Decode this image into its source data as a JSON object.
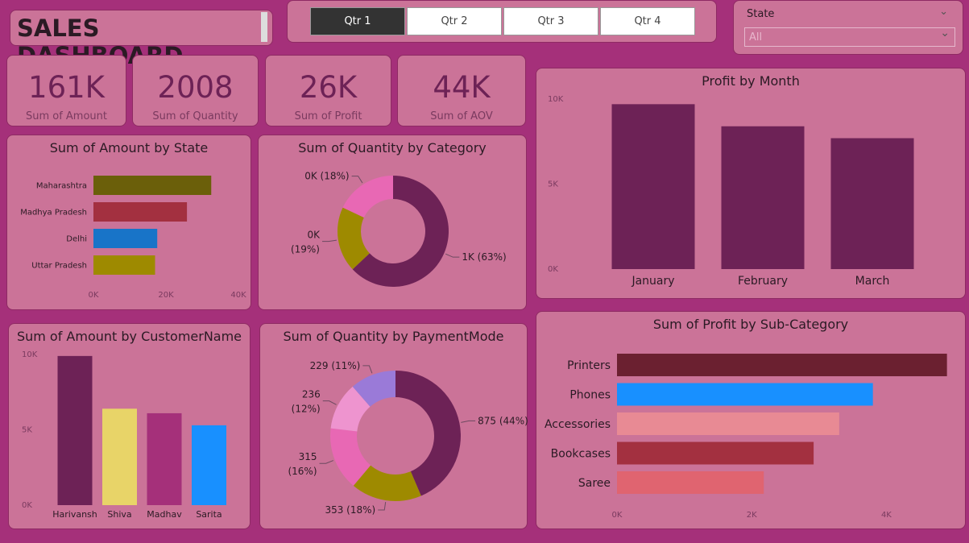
{
  "header": {
    "title": "SALES DASHBOARD"
  },
  "quarters": [
    "Qtr 1",
    "Qtr 2",
    "Qtr 3",
    "Qtr 4"
  ],
  "active_quarter": "Qtr 1",
  "state_filter": {
    "label": "State",
    "value": "All"
  },
  "kpis": [
    {
      "value": "161K",
      "label": "Sum of Amount"
    },
    {
      "value": "2008",
      "label": "Sum of Quantity"
    },
    {
      "value": "26K",
      "label": "Sum of Profit"
    },
    {
      "value": "44K",
      "label": "Sum of AOV"
    }
  ],
  "chart_data": [
    {
      "id": "amount-by-state",
      "type": "bar",
      "orientation": "horizontal",
      "title": "Sum of Amount by State",
      "categories": [
        "Maharashtra",
        "Madhya Pradesh",
        "Delhi",
        "Uttar Pradesh"
      ],
      "values": [
        32500,
        25800,
        17600,
        17000
      ],
      "colors": [
        "#6b5f0a",
        "#a33040",
        "#1874c8",
        "#9e8a00"
      ],
      "xlim": [
        0,
        40000
      ],
      "xticks": [
        "0K",
        "20K",
        "40K"
      ],
      "xtick_values": [
        0,
        20000,
        40000
      ]
    },
    {
      "id": "quantity-by-category",
      "type": "pie",
      "donut": true,
      "title": "Sum of Quantity by Category",
      "slices": [
        {
          "value": 63,
          "label": "1K (63%)",
          "color": "#6d2256"
        },
        {
          "value": 19,
          "label_lines": [
            "0K",
            "(19%)"
          ],
          "color": "#9e8a00"
        },
        {
          "value": 18,
          "label": "0K (18%)",
          "color": "#e868b4"
        }
      ]
    },
    {
      "id": "profit-by-month",
      "type": "bar",
      "title": "Profit by Month",
      "categories": [
        "January",
        "February",
        "March"
      ],
      "values": [
        9700,
        8400,
        7700
      ],
      "ylim": [
        0,
        10000
      ],
      "yticks": [
        "0K",
        "5K",
        "10K"
      ],
      "ytick_values": [
        0,
        5000,
        10000
      ],
      "color": "#6d2256"
    },
    {
      "id": "amount-by-customer",
      "type": "bar",
      "title": "Sum of Amount by CustomerName",
      "categories": [
        "Harivansh",
        "Shiva",
        "Madhav",
        "Sarita"
      ],
      "values": [
        9900,
        6400,
        6100,
        5300
      ],
      "colors": [
        "#6d2256",
        "#e8d468",
        "#a5307a",
        "#1890ff"
      ],
      "ylim": [
        0,
        10000
      ],
      "yticks": [
        "0K",
        "5K",
        "10K"
      ],
      "ytick_values": [
        0,
        5000,
        10000
      ]
    },
    {
      "id": "quantity-by-paymentmode",
      "type": "pie",
      "donut": true,
      "title": "Sum of Quantity by PaymentMode",
      "slices": [
        {
          "value": 875,
          "label": "875 (44%)",
          "color": "#6d2256"
        },
        {
          "value": 353,
          "label": "353 (18%)",
          "color": "#9e8a00"
        },
        {
          "value": 315,
          "label_lines": [
            "315",
            "(16%)"
          ],
          "color": "#e868b4"
        },
        {
          "value": 236,
          "label_lines": [
            "236",
            "(12%)"
          ],
          "color": "#ee94cf"
        },
        {
          "value": 229,
          "label": "229 (11%)",
          "color": "#9a7ad8"
        }
      ]
    },
    {
      "id": "profit-by-subcategory",
      "type": "bar",
      "orientation": "horizontal",
      "title": "Sum of Profit by Sub-Category",
      "categories": [
        "Printers",
        "Phones",
        "Accessories",
        "Bookcases",
        "Saree"
      ],
      "values": [
        4900,
        3800,
        3300,
        2920,
        2180
      ],
      "colors": [
        "#6b2030",
        "#1890ff",
        "#e88a94",
        "#a33040",
        "#e06470"
      ],
      "xlim": [
        0,
        5000
      ],
      "xticks": [
        "0K",
        "2K",
        "4K"
      ],
      "xtick_values": [
        0,
        2000,
        4000
      ]
    }
  ]
}
